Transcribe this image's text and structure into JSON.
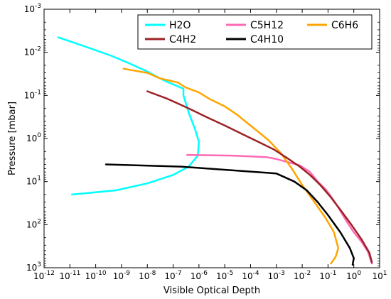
{
  "chart_data": {
    "type": "line",
    "xlabel": "Visible Optical Depth",
    "ylabel": "Pressure [mbar]",
    "x_scale": "log",
    "y_scale": "log",
    "y_inverted": true,
    "xlim": [
      1e-12,
      10
    ],
    "ylim": [
      1000,
      0.001
    ],
    "grid": false,
    "legend_placement": "top-right",
    "x_ticks": [
      {
        "value": 1e-12,
        "label": "10^-12"
      },
      {
        "value": 1e-11,
        "label": "10^-11"
      },
      {
        "value": 1e-10,
        "label": "10^-10"
      },
      {
        "value": 1e-09,
        "label": "10^-9"
      },
      {
        "value": 1e-08,
        "label": "10^-8"
      },
      {
        "value": 1e-07,
        "label": "10^-7"
      },
      {
        "value": 1e-06,
        "label": "10^-6"
      },
      {
        "value": 1e-05,
        "label": "10^-5"
      },
      {
        "value": 0.0001,
        "label": "10^-4"
      },
      {
        "value": 0.001,
        "label": "10^-3"
      },
      {
        "value": 0.01,
        "label": "10^-2"
      },
      {
        "value": 0.1,
        "label": "10^-1"
      },
      {
        "value": 1,
        "label": "10^0"
      },
      {
        "value": 10,
        "label": "10^1"
      }
    ],
    "y_ticks": [
      {
        "value": 0.001,
        "label": "10^-3"
      },
      {
        "value": 0.01,
        "label": "10^-2"
      },
      {
        "value": 0.1,
        "label": "10^-1"
      },
      {
        "value": 1,
        "label": "10^0"
      },
      {
        "value": 10,
        "label": "10^1"
      },
      {
        "value": 100,
        "label": "10^2"
      },
      {
        "value": 1000,
        "label": "10^3"
      }
    ],
    "series": [
      {
        "name": "H2O",
        "color": "#00ffff",
        "points": [
          [
            3.5e-12,
            0.0045
          ],
          [
            8e-11,
            0.0085
          ],
          [
            4e-10,
            0.012
          ],
          [
            2e-09,
            0.018
          ],
          [
            1e-08,
            0.028
          ],
          [
            4.5e-08,
            0.045
          ],
          [
            2.5e-07,
            0.07
          ],
          [
            2.5e-07,
            0.1
          ],
          [
            4e-07,
            0.25
          ],
          [
            7e-07,
            0.6
          ],
          [
            1e-06,
            1.2
          ],
          [
            9e-07,
            2.5
          ],
          [
            4e-07,
            4.5
          ],
          [
            1e-07,
            7
          ],
          [
            1e-08,
            11
          ],
          [
            6e-10,
            16
          ],
          [
            1.2e-11,
            20
          ]
        ]
      },
      {
        "name": "C5H12",
        "color": "#ff69b4",
        "points": [
          [
            3.5e-07,
            2.4
          ],
          [
            2e-05,
            2.5
          ],
          [
            0.0004,
            2.7
          ],
          [
            0.001,
            3
          ],
          [
            0.003,
            3.6
          ],
          [
            0.008,
            4.2
          ],
          [
            0.02,
            6
          ],
          [
            0.04,
            10
          ],
          [
            0.08,
            15
          ],
          [
            0.15,
            25
          ],
          [
            0.25,
            40
          ],
          [
            0.5,
            80
          ],
          [
            1,
            150
          ],
          [
            2,
            250
          ],
          [
            3.5,
            420
          ],
          [
            5,
            800
          ]
        ]
      },
      {
        "name": "C6H6",
        "color": "#ffa500",
        "points": [
          [
            1.2e-09,
            0.024
          ],
          [
            2.5e-09,
            0.026
          ],
          [
            1e-08,
            0.03
          ],
          [
            3e-08,
            0.04
          ],
          [
            1.5e-07,
            0.05
          ],
          [
            3e-07,
            0.065
          ],
          [
            1e-06,
            0.085
          ],
          [
            2.5e-06,
            0.12
          ],
          [
            1e-05,
            0.18
          ],
          [
            3e-05,
            0.28
          ],
          [
            8e-05,
            0.45
          ],
          [
            0.0002,
            0.7
          ],
          [
            0.0005,
            1.1
          ],
          [
            0.0015,
            2.2
          ],
          [
            0.004,
            5
          ],
          [
            0.01,
            12
          ],
          [
            0.03,
            30
          ],
          [
            0.08,
            70
          ],
          [
            0.17,
            150
          ],
          [
            0.25,
            350
          ],
          [
            0.2,
            550
          ],
          [
            0.13,
            800
          ]
        ]
      },
      {
        "name": "C4H2",
        "color": "#9b2226",
        "points": [
          [
            1e-08,
            0.08
          ],
          [
            6e-08,
            0.12
          ],
          [
            4e-07,
            0.2
          ],
          [
            2e-06,
            0.32
          ],
          [
            1e-05,
            0.5
          ],
          [
            5e-05,
            0.8
          ],
          [
            0.0002,
            1.2
          ],
          [
            0.0008,
            1.8
          ],
          [
            0.0025,
            2.8
          ],
          [
            0.008,
            4.5
          ],
          [
            0.02,
            7
          ],
          [
            0.05,
            12
          ],
          [
            0.12,
            22
          ],
          [
            0.3,
            45
          ],
          [
            0.8,
            100
          ],
          [
            2,
            220
          ],
          [
            4,
            450
          ],
          [
            5,
            750
          ]
        ]
      },
      {
        "name": "C4H10",
        "color": "#000000",
        "points": [
          [
            2.5e-10,
            4
          ],
          [
            2e-07,
            4.5
          ],
          [
            0.001,
            6.5
          ],
          [
            0.005,
            10
          ],
          [
            0.015,
            16
          ],
          [
            0.04,
            30
          ],
          [
            0.1,
            60
          ],
          [
            0.3,
            150
          ],
          [
            0.7,
            350
          ],
          [
            1,
            600
          ],
          [
            0.9,
            850
          ]
        ]
      }
    ]
  }
}
